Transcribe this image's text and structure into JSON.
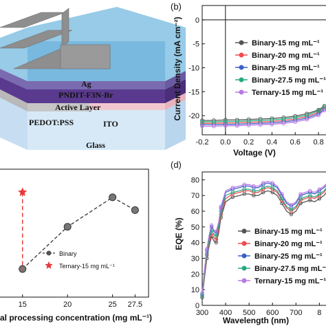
{
  "colors": {
    "binary15": "#555555",
    "binary20": "#f04b4b",
    "binary25": "#3a5fc8",
    "binary275": "#27a883",
    "ternary15": "#b77ae0",
    "binary_line_c": "#333333",
    "ternary_star": "#e83a3a"
  },
  "panel_a": {
    "layers": [
      "Ag",
      "PNDIT-F3N-Br",
      "Active Layer",
      "PEDOT:PSS",
      "ITO",
      "Glass"
    ]
  },
  "chart_data": [
    {
      "panel": "b",
      "type": "line",
      "panel_label": "(b)",
      "xlabel": "Voltage (V)",
      "ylabel": "Current Density (mA cm⁻²)",
      "xlim": [
        -0.2,
        0.9
      ],
      "ylim": [
        -24,
        3
      ],
      "xticks": [
        "-0.2",
        "0.0",
        "0.2",
        "0.4",
        "0.6",
        "0.8"
      ],
      "yticks": [
        "0",
        "-5",
        "-10",
        "-15",
        "-20"
      ],
      "legend_position": "right",
      "series": [
        {
          "name": "Binary-15 mg mL⁻¹",
          "color_key": "binary15",
          "x": [
            -0.2,
            -0.1,
            0.0,
            0.1,
            0.2,
            0.3,
            0.4,
            0.5,
            0.6,
            0.7,
            0.8,
            0.85
          ],
          "y": [
            -21.0,
            -21.0,
            -20.9,
            -20.9,
            -20.8,
            -20.7,
            -20.6,
            -20.4,
            -20.1,
            -19.6,
            -18.8,
            -18.0
          ]
        },
        {
          "name": "Binary-20 mg mL⁻¹",
          "color_key": "binary20",
          "x": [
            -0.2,
            -0.1,
            0.0,
            0.1,
            0.2,
            0.3,
            0.4,
            0.5,
            0.6,
            0.7,
            0.8,
            0.85
          ],
          "y": [
            -21.6,
            -21.6,
            -21.5,
            -21.5,
            -21.4,
            -21.3,
            -21.2,
            -21.0,
            -20.7,
            -20.2,
            -19.3,
            -18.3
          ]
        },
        {
          "name": "Binary-25 mg mL⁻¹",
          "color_key": "binary25",
          "x": [
            -0.2,
            -0.1,
            0.0,
            0.1,
            0.2,
            0.3,
            0.4,
            0.5,
            0.6,
            0.7,
            0.8,
            0.85
          ],
          "y": [
            -21.9,
            -21.9,
            -21.8,
            -21.8,
            -21.7,
            -21.6,
            -21.5,
            -21.3,
            -21.0,
            -20.5,
            -19.6,
            -18.6
          ]
        },
        {
          "name": "Binary-27.5 mg mL⁻¹",
          "color_key": "binary275",
          "x": [
            -0.2,
            -0.1,
            0.0,
            0.1,
            0.2,
            0.3,
            0.4,
            0.5,
            0.6,
            0.7,
            0.8,
            0.85
          ],
          "y": [
            -21.3,
            -21.3,
            -21.2,
            -21.2,
            -21.1,
            -21.0,
            -20.9,
            -20.7,
            -20.4,
            -19.9,
            -19.0,
            -18.1
          ]
        },
        {
          "name": "Ternary-15 mg mL⁻¹",
          "color_key": "ternary15",
          "x": [
            -0.2,
            -0.1,
            0.0,
            0.1,
            0.2,
            0.3,
            0.4,
            0.5,
            0.6,
            0.7,
            0.8,
            0.85
          ],
          "y": [
            -22.2,
            -22.2,
            -22.1,
            -22.1,
            -22.0,
            -21.9,
            -21.8,
            -21.6,
            -21.3,
            -20.8,
            -19.9,
            -18.9
          ]
        }
      ]
    },
    {
      "panel": "c",
      "type": "scatter",
      "xlabel": "al processing concentration (mg mL⁻¹)",
      "xlim": [
        12.5,
        29
      ],
      "ylim": [
        0,
        1
      ],
      "xticks": [
        "15",
        "20",
        "25",
        "27.5"
      ],
      "legend_position": "lower-right",
      "series": [
        {
          "name": "Binary",
          "color_key": "binary_line_c",
          "marker": "circle",
          "x": [
            15,
            20,
            25,
            27.5
          ],
          "y": [
            0.22,
            0.55,
            0.78,
            0.68
          ]
        },
        {
          "name": "Ternary-15 mg mL⁻¹",
          "color_key": "ternary_star",
          "marker": "star",
          "x": [
            15
          ],
          "y": [
            0.82
          ]
        }
      ]
    },
    {
      "panel": "d",
      "type": "line",
      "panel_label": "(d)",
      "xlabel": "Wavelength (nm)",
      "ylabel": "EQE (%)",
      "xlim": [
        300,
        840
      ],
      "ylim": [
        0,
        85
      ],
      "xticks": [
        "300",
        "400",
        "500",
        "600",
        "700",
        "8"
      ],
      "yticks": [
        "0",
        "10",
        "20",
        "30",
        "40",
        "50",
        "60",
        "70",
        "80"
      ],
      "legend_position": "lower-right",
      "series": [
        {
          "name": "Binary-15 mg mL⁻¹",
          "color_key": "binary15",
          "x": [
            300,
            310,
            320,
            330,
            340,
            350,
            360,
            370,
            380,
            400,
            430,
            460,
            480,
            500,
            520,
            540,
            560,
            580,
            600,
            620,
            640,
            660,
            680,
            700,
            720,
            740,
            760,
            780,
            800,
            820,
            840
          ],
          "y": [
            5,
            18,
            30,
            38,
            44,
            41,
            40,
            46,
            56,
            66,
            69,
            70,
            71,
            71,
            70,
            70,
            72,
            73,
            72,
            70,
            65,
            60,
            58,
            60,
            65,
            66,
            67,
            66,
            68,
            70,
            74
          ]
        },
        {
          "name": "Binary-20 mg mL⁻¹",
          "color_key": "binary20",
          "x": [
            300,
            310,
            320,
            330,
            340,
            350,
            360,
            370,
            380,
            400,
            430,
            460,
            480,
            500,
            520,
            540,
            560,
            580,
            600,
            620,
            640,
            660,
            680,
            700,
            720,
            740,
            760,
            780,
            800,
            820,
            840
          ],
          "y": [
            6,
            20,
            32,
            40,
            46,
            43,
            42,
            48,
            58,
            68,
            71,
            72,
            73,
            73,
            72,
            72,
            74,
            75,
            74,
            72,
            67,
            62,
            60,
            62,
            67,
            68,
            69,
            68,
            70,
            72,
            76
          ]
        },
        {
          "name": "Binary-25 mg mL⁻¹",
          "color_key": "binary25",
          "x": [
            300,
            310,
            320,
            330,
            340,
            350,
            360,
            370,
            380,
            400,
            430,
            460,
            480,
            500,
            520,
            540,
            560,
            580,
            600,
            620,
            640,
            660,
            680,
            700,
            720,
            740,
            760,
            780,
            800,
            820,
            840
          ],
          "y": [
            7,
            22,
            35,
            44,
            50,
            47,
            46,
            52,
            62,
            72,
            74,
            75,
            76,
            76,
            75,
            75,
            77,
            78,
            77,
            75,
            70,
            65,
            63,
            65,
            70,
            71,
            72,
            71,
            73,
            75,
            78
          ]
        },
        {
          "name": "Binary-27.5 mg mL⁻¹",
          "color_key": "binary275",
          "x": [
            300,
            310,
            320,
            330,
            340,
            350,
            360,
            370,
            380,
            400,
            430,
            460,
            480,
            500,
            520,
            540,
            560,
            580,
            600,
            620,
            640,
            660,
            680,
            700,
            720,
            740,
            760,
            780,
            800,
            820,
            840
          ],
          "y": [
            6,
            21,
            33,
            42,
            48,
            45,
            44,
            50,
            60,
            70,
            72,
            73,
            74,
            74,
            73,
            73,
            75,
            76,
            75,
            73,
            68,
            63,
            61,
            63,
            68,
            69,
            70,
            69,
            71,
            73,
            77
          ]
        },
        {
          "name": "Ternary-15 mg mL⁻¹",
          "color_key": "ternary15",
          "x": [
            300,
            310,
            320,
            330,
            340,
            350,
            360,
            370,
            380,
            400,
            430,
            460,
            480,
            500,
            520,
            540,
            560,
            580,
            600,
            620,
            640,
            660,
            680,
            700,
            720,
            740,
            760,
            780,
            800,
            820,
            840
          ],
          "y": [
            8,
            23,
            36,
            45,
            51,
            48,
            47,
            53,
            63,
            73,
            75,
            76,
            77,
            77,
            76,
            76,
            78,
            79,
            78,
            76,
            71,
            66,
            64,
            66,
            71,
            72,
            73,
            72,
            74,
            76,
            79
          ]
        }
      ]
    }
  ]
}
